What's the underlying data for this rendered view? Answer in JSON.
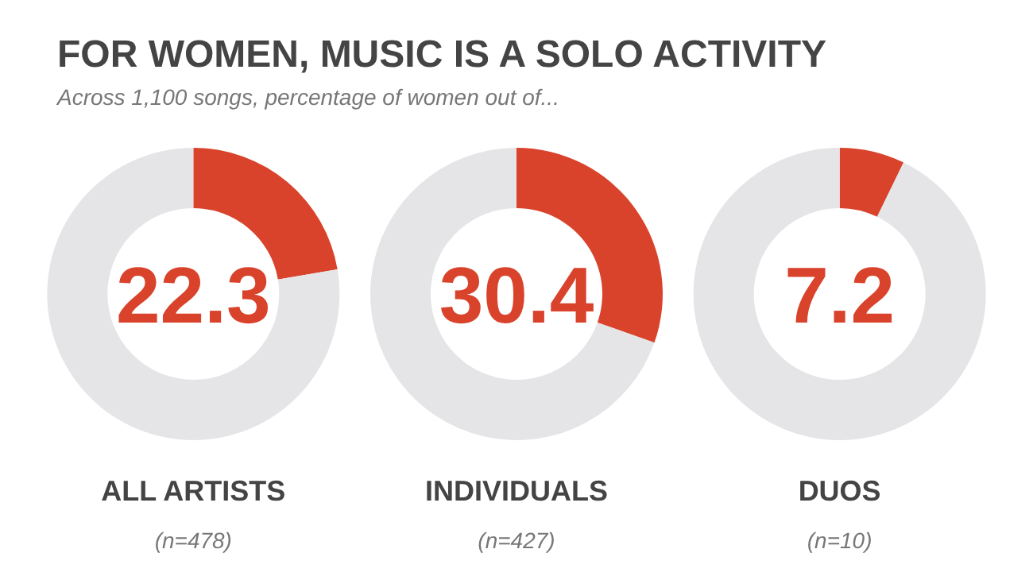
{
  "chart_data": [
    {
      "type": "other",
      "title": "FOR WOMEN, MUSIC IS A SOLO ACTIVITY",
      "subtitle": "Across 1,100 songs, percentage of women out of..."
    },
    {
      "type": "donut",
      "title": "ALL ARTISTS",
      "subtitle": "22.3",
      "annotations": [
        "(n=478)"
      ],
      "categories": [
        null,
        null
      ],
      "values": [
        22.3,
        77.7
      ],
      "colors": [
        "#d9432b",
        "#e5e5e7"
      ]
    },
    {
      "type": "donut",
      "title": "INDIVIDUALS",
      "subtitle": "30.4",
      "annotations": [
        "(n=427)"
      ],
      "categories": [
        null,
        null
      ],
      "values": [
        30.4,
        69.6
      ],
      "colors": [
        "#d9432b",
        "#e5e5e7"
      ]
    },
    {
      "type": "donut",
      "title": "DUOS",
      "subtitle": "7.2",
      "annotations": [
        "(n=10)"
      ],
      "categories": [
        null,
        null
      ],
      "values": [
        7.2,
        92.8
      ],
      "colors": [
        "#d9432b",
        "#e5e5e7"
      ]
    }
  ]
}
